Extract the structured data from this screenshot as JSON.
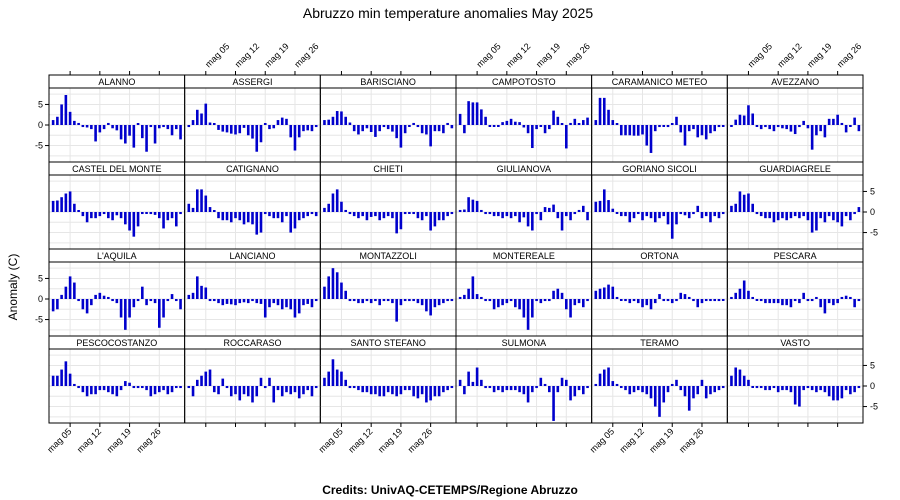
{
  "title": "Abruzzo min temperature anomalies May 2025",
  "ylabel": "Anomaly (C)",
  "credits": "Credits: UnivAQ-CETEMPS/Regione Abruzzo",
  "colors": {
    "bar": "#0000cc",
    "grid": "#e6e6e6",
    "strip": "#ffffff",
    "frame": "#000000"
  },
  "chart_data": {
    "type": "bar",
    "layout": "panel-grid",
    "ncols": 6,
    "nrows": 4,
    "x_days": [
      1,
      2,
      3,
      4,
      5,
      6,
      7,
      8,
      9,
      10,
      11,
      12,
      13,
      14,
      15,
      16,
      17,
      18,
      19,
      20,
      21,
      22,
      23,
      24,
      25,
      26,
      27,
      28,
      29,
      30,
      31
    ],
    "x_tick_days": [
      5,
      12,
      19,
      26
    ],
    "x_tick_labels": [
      "mag 05",
      "mag 12",
      "mag 19",
      "mag 26"
    ],
    "ylim": [
      -9,
      9
    ],
    "y_ticks": [
      -5,
      0,
      5
    ],
    "y_tick_labels": [
      "-5",
      "0",
      "5"
    ],
    "grid": true,
    "series": [
      {
        "name": "ALANNO",
        "values": [
          1.2,
          2.0,
          5.0,
          7.3,
          3.2,
          1.0,
          0.5,
          -0.5,
          -0.6,
          -1.0,
          -4.0,
          -1.8,
          -1.0,
          0.5,
          -0.8,
          -1.3,
          -3.5,
          -4.5,
          -2.6,
          -5.5,
          0.2,
          -3.2,
          -6.5,
          -0.5,
          -4.5,
          -0.8,
          -0.5,
          -1.0,
          -2.5,
          -1.0,
          -3.5
        ]
      },
      {
        "name": "ASSERGI",
        "values": [
          -0.5,
          1.2,
          3.7,
          2.8,
          5.2,
          0.6,
          0.3,
          -1.2,
          -1.6,
          -1.8,
          -2.1,
          -2.3,
          -2.0,
          -0.7,
          -2.5,
          -3.3,
          -6.5,
          -4.2,
          0.3,
          -1.0,
          -0.8,
          1.2,
          1.8,
          1.5,
          -3.0,
          -6.2,
          -3.0,
          -1.5,
          -1.3,
          -1.5,
          -0.5
        ]
      },
      {
        "name": "BARISCIANO",
        "values": [
          1.2,
          1.3,
          2.0,
          3.4,
          3.3,
          2.0,
          0.6,
          -1.5,
          -2.3,
          -1.5,
          -0.8,
          -1.7,
          -2.9,
          -1.5,
          -0.5,
          -1.0,
          -1.6,
          -3.2,
          -5.5,
          -2.0,
          -0.3,
          0.5,
          -0.5,
          -2.0,
          -2.3,
          -5.2,
          -1.5,
          -1.5,
          -2.0,
          0.5,
          -0.8
        ]
      },
      {
        "name": "CAMPOTOSTO",
        "values": [
          2.7,
          -2.0,
          5.8,
          5.5,
          5.5,
          3.8,
          2.0,
          -0.3,
          -0.3,
          -0.3,
          0.7,
          1.0,
          1.5,
          0.8,
          0.7,
          -0.6,
          -2.0,
          -5.6,
          -1.0,
          -0.3,
          -2.0,
          -1.0,
          3.5,
          2.0,
          0.2,
          -5.7,
          0.5,
          1.5,
          0.3,
          1.2,
          1.8
        ]
      },
      {
        "name": "CARAMANICO METEO",
        "values": [
          1.2,
          6.6,
          6.6,
          3.7,
          1.2,
          0.3,
          -2.5,
          -2.5,
          -2.5,
          -2.6,
          -2.6,
          -2.3,
          -5.0,
          -6.8,
          -1.5,
          -0.5,
          -0.3,
          -0.5,
          0.3,
          2.0,
          -1.8,
          -5.0,
          -1.5,
          -1.0,
          -3.0,
          -2.5,
          -3.5,
          -2.0,
          -1.5,
          -0.5,
          -0.3
        ]
      },
      {
        "name": "AVEZZANO",
        "values": [
          -0.3,
          1.3,
          2.5,
          2.3,
          4.8,
          2.8,
          -0.3,
          -1.0,
          -0.5,
          -1.0,
          -1.5,
          -0.5,
          -0.8,
          -1.0,
          -1.6,
          -2.2,
          -0.5,
          1.0,
          -0.8,
          -6.0,
          -2.5,
          -1.5,
          -3.0,
          1.5,
          1.5,
          2.5,
          0.5,
          -1.8,
          -0.4,
          1.8,
          -1.5
        ]
      },
      {
        "name": "CASTEL DEL MONTE",
        "values": [
          2.7,
          2.8,
          3.6,
          4.5,
          5.0,
          2.0,
          0.3,
          -1.0,
          -2.5,
          -1.5,
          -1.5,
          -1.0,
          -0.5,
          -1.5,
          -2.0,
          -0.8,
          -1.5,
          -3.0,
          -4.5,
          -6.0,
          -3.5,
          -0.5,
          -0.3,
          -0.5,
          -0.7,
          -1.5,
          -4.0,
          -2.0,
          -1.5,
          -3.5,
          -0.5
        ]
      },
      {
        "name": "CATIGNANO",
        "values": [
          2.0,
          1.0,
          5.5,
          5.5,
          4.0,
          1.2,
          0.3,
          -1.5,
          -2.0,
          -2.0,
          -2.5,
          -1.5,
          -2.0,
          -3.0,
          -2.5,
          -3.0,
          -5.5,
          -5.0,
          -0.5,
          -1.0,
          -1.5,
          -1.5,
          -2.5,
          -1.0,
          -5.0,
          -4.0,
          -2.0,
          -1.5,
          -1.0,
          -0.5,
          -1.0
        ]
      },
      {
        "name": "CHIETI",
        "values": [
          1.0,
          2.0,
          4.5,
          5.5,
          2.5,
          0.5,
          -0.5,
          -1.0,
          -1.5,
          -1.0,
          -2.0,
          -1.2,
          -1.0,
          -2.0,
          -1.5,
          -1.0,
          -1.5,
          -5.2,
          -4.2,
          -0.5,
          -0.3,
          -0.5,
          -1.5,
          -2.0,
          -1.0,
          -4.5,
          -3.5,
          -2.0,
          -2.0,
          -1.0,
          -0.5
        ]
      },
      {
        "name": "GIULIANOVA",
        "values": [
          0.5,
          0.6,
          3.6,
          3.0,
          2.7,
          0.5,
          -0.5,
          -0.5,
          -1.0,
          -1.0,
          -1.5,
          -1.0,
          -1.5,
          -1.0,
          -2.5,
          -1.3,
          -3.5,
          -4.5,
          -0.5,
          -2.0,
          1.2,
          1.0,
          1.8,
          -1.5,
          -4.5,
          -1.0,
          -2.0,
          -0.5,
          0.5,
          1.5,
          -2.0
        ]
      },
      {
        "name": "GORIANO SICOLI",
        "values": [
          2.5,
          2.7,
          5.5,
          2.9,
          0.8,
          -0.3,
          -1.0,
          -1.0,
          -2.5,
          -1.5,
          -0.5,
          -2.0,
          -1.0,
          -1.5,
          -2.5,
          -1.5,
          -1.0,
          -3.0,
          -6.5,
          -3.0,
          -0.5,
          -0.8,
          -1.5,
          -0.5,
          1.5,
          -1.5,
          -1.0,
          -2.5,
          -1.0,
          -1.5,
          -0.5
        ]
      },
      {
        "name": "GUARDIAGRELE",
        "values": [
          1.5,
          2.0,
          5.0,
          4.2,
          4.5,
          2.0,
          -0.5,
          -1.0,
          -1.5,
          -1.5,
          -2.5,
          -2.0,
          -1.5,
          -2.0,
          -1.5,
          -1.0,
          -1.5,
          -1.0,
          -2.0,
          -5.0,
          -4.5,
          -1.5,
          -2.5,
          -1.0,
          -2.0,
          -2.5,
          -3.5,
          -1.0,
          -2.0,
          -0.5,
          1.2
        ]
      },
      {
        "name": "L'AQUILA",
        "values": [
          -3.0,
          -2.5,
          1.0,
          3.0,
          5.5,
          4.0,
          -0.5,
          -2.5,
          -3.5,
          -1.5,
          1.0,
          1.5,
          0.8,
          0.5,
          -0.5,
          -1.0,
          -4.5,
          -7.5,
          -4.5,
          -2.0,
          -0.5,
          3.0,
          -1.5,
          -0.5,
          -1.0,
          -7.0,
          -4.5,
          -0.5,
          1.2,
          -0.5,
          -2.5
        ]
      },
      {
        "name": "LANCIANO",
        "values": [
          1.0,
          1.5,
          5.5,
          3.2,
          2.8,
          -0.5,
          -0.5,
          -1.0,
          -1.5,
          -1.2,
          -1.3,
          -1.5,
          -1.0,
          -0.8,
          -1.0,
          -0.5,
          -1.0,
          -1.2,
          -4.5,
          -2.0,
          -1.0,
          -1.5,
          -2.5,
          -2.0,
          -2.5,
          -4.5,
          -3.5,
          -1.5,
          -1.2,
          -2.0,
          -0.5
        ]
      },
      {
        "name": "MONTAZZOLI",
        "values": [
          3.0,
          5.5,
          7.5,
          6.5,
          4.0,
          2.0,
          -0.5,
          -0.5,
          -1.0,
          -1.0,
          -0.5,
          -1.0,
          -0.5,
          -1.5,
          -0.5,
          -0.5,
          -1.0,
          -5.5,
          -1.5,
          -0.5,
          -0.5,
          -0.5,
          -1.0,
          -1.5,
          -3.0,
          -4.0,
          -2.0,
          -1.5,
          -1.0,
          -0.5,
          -0.5
        ]
      },
      {
        "name": "MONTEREALE",
        "values": [
          0.5,
          1.0,
          2.5,
          5.5,
          1.2,
          0.5,
          -0.5,
          -0.5,
          -2.5,
          -2.0,
          -1.5,
          -1.0,
          -0.5,
          -2.0,
          -2.5,
          -4.5,
          -7.5,
          -4.5,
          -0.5,
          -1.0,
          -0.5,
          -0.5,
          2.0,
          2.5,
          1.5,
          -2.5,
          -4.5,
          -1.5,
          -1.0,
          -2.0,
          -0.5
        ]
      },
      {
        "name": "ORTONA",
        "values": [
          2.0,
          2.5,
          2.8,
          3.5,
          3.0,
          0.5,
          -0.3,
          -0.5,
          -1.0,
          -0.5,
          -1.0,
          -2.0,
          -1.5,
          -2.5,
          -1.0,
          1.2,
          -0.5,
          -0.5,
          -1.0,
          -0.5,
          1.5,
          1.2,
          0.5,
          -0.5,
          -2.0,
          -1.0,
          -0.5,
          -0.5,
          -0.5,
          -0.5,
          -0.3
        ]
      },
      {
        "name": "PESCARA",
        "values": [
          0.5,
          1.5,
          2.5,
          4.5,
          2.0,
          0.5,
          -0.3,
          -0.5,
          -1.0,
          -1.0,
          -1.0,
          -1.0,
          -1.5,
          -1.5,
          -2.0,
          -0.5,
          -1.0,
          1.5,
          -0.5,
          -0.5,
          0.5,
          -2.0,
          -3.5,
          -1.0,
          -1.5,
          -1.0,
          0.5,
          0.8,
          0.5,
          -2.0,
          -0.5
        ]
      },
      {
        "name": "PESCOCOSTANZO",
        "values": [
          2.5,
          2.5,
          4.0,
          6.0,
          3.0,
          0.5,
          -0.5,
          -1.5,
          -2.5,
          -2.0,
          -2.0,
          -1.0,
          -1.0,
          -1.5,
          -2.0,
          -2.5,
          -1.0,
          1.2,
          0.8,
          -0.5,
          -0.5,
          -0.5,
          -1.0,
          -2.5,
          -2.0,
          -1.5,
          -1.0,
          -2.0,
          -1.5,
          -0.5,
          -0.5
        ]
      },
      {
        "name": "ROCCARASO",
        "values": [
          -0.5,
          -2.5,
          1.5,
          2.5,
          3.5,
          4.0,
          -1.5,
          -2.0,
          1.8,
          -0.5,
          -2.5,
          -2.0,
          -3.5,
          -2.0,
          -2.5,
          -4.0,
          -2.5,
          2.0,
          -0.5,
          2.0,
          -4.0,
          -1.0,
          -2.5,
          -1.5,
          -2.0,
          -1.5,
          -3.0,
          -2.0,
          -1.0,
          -2.5,
          -0.5
        ]
      },
      {
        "name": "SANTO STEFANO",
        "values": [
          2.0,
          3.5,
          6.5,
          4.0,
          3.5,
          1.5,
          -0.5,
          -0.5,
          -1.0,
          -1.5,
          -1.5,
          -2.0,
          -2.0,
          -2.5,
          -2.5,
          -1.5,
          -2.0,
          -2.5,
          -2.0,
          -1.0,
          -1.0,
          -2.5,
          -3.0,
          -2.0,
          -4.0,
          -3.5,
          -2.5,
          -2.5,
          -1.5,
          -1.0,
          -0.5
        ]
      },
      {
        "name": "SULMONA",
        "values": [
          1.5,
          -2.0,
          3.5,
          1.0,
          4.5,
          1.5,
          -0.5,
          -0.5,
          -1.5,
          -1.0,
          -1.5,
          -1.0,
          -1.0,
          -1.0,
          -1.5,
          -2.0,
          -4.0,
          -1.5,
          -0.5,
          2.0,
          0.5,
          -1.5,
          -8.5,
          -1.5,
          2.0,
          1.5,
          -3.5,
          -2.5,
          -1.0,
          -2.0,
          -0.5
        ]
      },
      {
        "name": "TERAMO",
        "values": [
          0.5,
          3.0,
          4.0,
          4.5,
          1.2,
          0.5,
          -0.5,
          -1.0,
          -2.0,
          -1.5,
          -1.0,
          -1.5,
          -2.0,
          -3.0,
          -5.0,
          -7.5,
          -4.0,
          -1.5,
          0.5,
          1.5,
          -1.0,
          -2.5,
          -6.0,
          -3.0,
          -2.0,
          1.5,
          -3.0,
          -2.0,
          -1.5,
          -1.0,
          -0.5
        ]
      },
      {
        "name": "VASTO",
        "values": [
          2.5,
          4.5,
          4.0,
          2.5,
          1.5,
          -0.3,
          -0.5,
          -0.5,
          -1.0,
          -1.0,
          -0.5,
          -1.5,
          -1.0,
          -1.0,
          -1.5,
          -4.5,
          -5.0,
          -1.0,
          -0.5,
          -1.0,
          -1.5,
          -1.0,
          -1.5,
          -2.5,
          -3.5,
          -3.5,
          -3.0,
          -1.0,
          -2.0,
          -1.5,
          -0.5
        ]
      }
    ]
  }
}
